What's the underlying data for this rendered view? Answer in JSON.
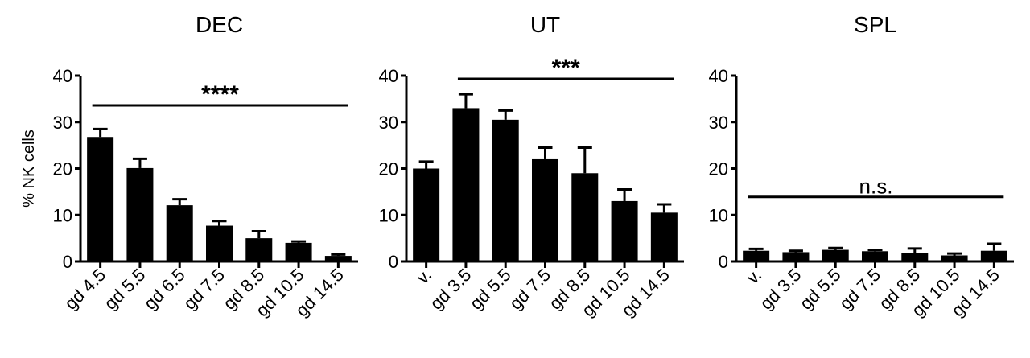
{
  "chart_data": [
    {
      "type": "bar",
      "title": "DEC",
      "y_label": "% NK cells",
      "categories": [
        "gd 4.5",
        "gd 5.5",
        "gd 6.5",
        "gd 7.5",
        "gd 8.5",
        "gd 10.5",
        "gd 14.5"
      ],
      "values": [
        26.8,
        20.1,
        12.1,
        7.7,
        5,
        4,
        1.2
      ],
      "errors": [
        1.7,
        2,
        1.3,
        1,
        1.5,
        0.3,
        0.3
      ],
      "color": "#000000",
      "ylim": [
        0,
        40
      ],
      "yticks": [
        0,
        10,
        20,
        30,
        40
      ],
      "bracket": {
        "label": "****",
        "y": 33.6,
        "span": [
          "gd 4.5",
          "gd 14.5"
        ]
      }
    },
    {
      "type": "bar",
      "title": "UT",
      "categories": [
        "v.",
        "gd 3.5",
        "gd 5.5",
        "gd 7.5",
        "gd 8.5",
        "gd 10.5",
        "gd 14.5"
      ],
      "values": [
        20,
        33,
        30.5,
        22,
        19,
        13,
        10.5
      ],
      "errors": [
        1.5,
        3,
        2,
        2.5,
        5.5,
        2.5,
        1.8
      ],
      "color": "#000000",
      "ylim": [
        0,
        40
      ],
      "yticks": [
        0,
        10,
        20,
        30,
        40
      ],
      "bracket": {
        "label": "***",
        "y": 39.3,
        "span": [
          "gd 3.5",
          "gd 14.5"
        ]
      }
    },
    {
      "type": "bar",
      "title": "SPL",
      "categories": [
        "v.",
        "gd 3.5",
        "gd 5.5",
        "gd 7.5",
        "gd 8.5",
        "gd 10.5",
        "gd 14.5"
      ],
      "values": [
        2.3,
        2,
        2.5,
        2.2,
        1.8,
        1.3,
        2.3
      ],
      "errors": [
        0.4,
        0.3,
        0.4,
        0.3,
        1,
        0.4,
        1.5
      ],
      "color": "#000000",
      "ylim": [
        0,
        40
      ],
      "yticks": [
        0,
        10,
        20,
        30,
        40
      ],
      "bracket": {
        "label": "n.s.",
        "y": 13.9,
        "span": [
          "v.",
          "gd 14.5"
        ]
      }
    }
  ]
}
